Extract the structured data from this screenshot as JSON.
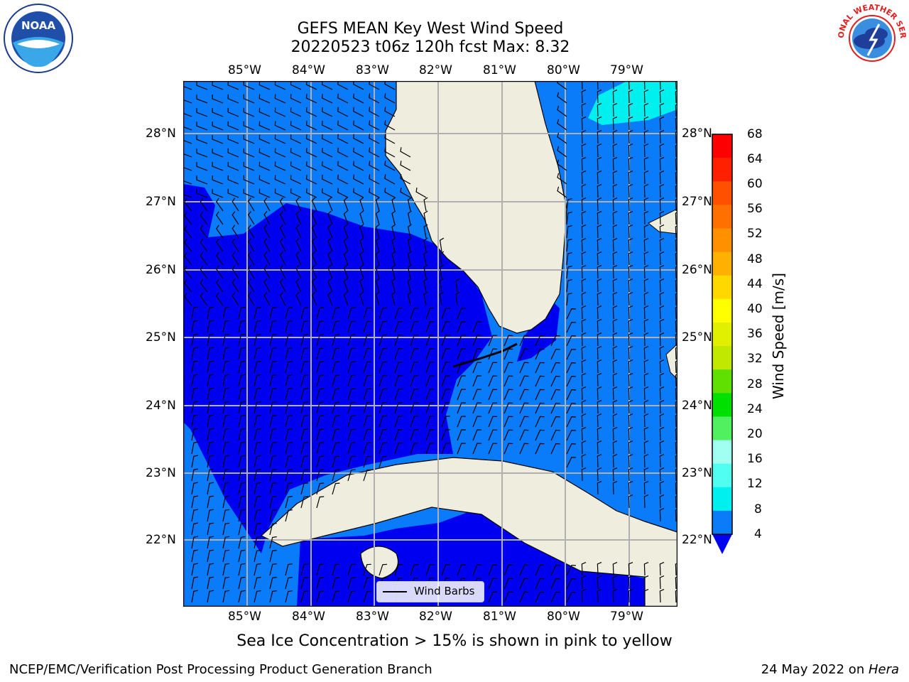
{
  "title": {
    "line1": "GEFS MEAN Key West Wind Speed",
    "line2": "20220523 t06z 120h fcst   Max: 8.32"
  },
  "logos": {
    "noaa_text": "NOAA",
    "nws_text": "NATIONAL WEATHER SERVICE"
  },
  "map": {
    "lon_labels": [
      "85°W",
      "84°W",
      "83°W",
      "82°W",
      "81°W",
      "80°W",
      "79°W"
    ],
    "lat_labels": [
      "28°N",
      "27°N",
      "26°N",
      "25°N",
      "24°N",
      "23°N",
      "22°N"
    ],
    "legend_label": "Wind Barbs",
    "colors": {
      "light_blue": "#0a7cfa",
      "dark_blue": "#0000f0",
      "cyan": "#00f0f0",
      "land": "#eeedde",
      "grid": "#b0b0b0"
    }
  },
  "colorbar": {
    "label": "Wind Speed [m/s]",
    "ticks": [
      "68",
      "64",
      "60",
      "56",
      "52",
      "48",
      "44",
      "40",
      "36",
      "32",
      "28",
      "24",
      "20",
      "16",
      "12",
      "8",
      "4"
    ],
    "colors": [
      "#fd0000",
      "#ff2000",
      "#ff5000",
      "#ff7000",
      "#ff9000",
      "#ffb000",
      "#ffd800",
      "#ffff00",
      "#e0f000",
      "#c0e800",
      "#60e000",
      "#00e000",
      "#50f060",
      "#a0fff0",
      "#50fff0",
      "#00f0f0",
      "#0a7cfa"
    ],
    "extend_color": "#0000f0"
  },
  "note": "Sea Ice Concentration > 15% is shown in pink to yellow",
  "footer": {
    "left": "NCEP/EMC/Verification Post Processing Product Generation Branch",
    "right_prefix": "24 May 2022 on ",
    "right_host": "Hera"
  }
}
